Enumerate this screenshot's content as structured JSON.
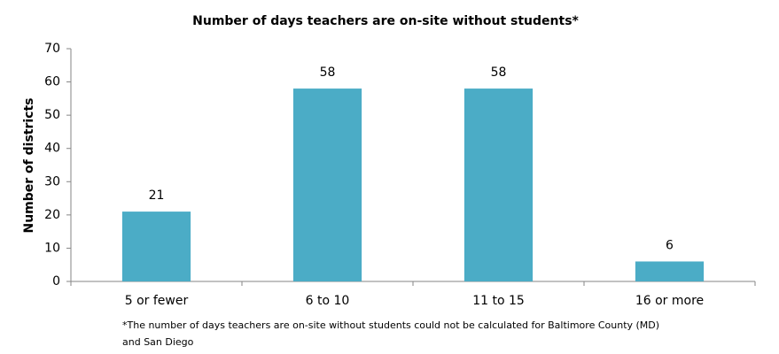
{
  "chart_data": {
    "type": "bar",
    "title": "Number of days teachers are on-site without students*",
    "y_label": "Number of districts",
    "categories": [
      "5 or fewer",
      "6 to 10",
      "11 to 15",
      "16 or more"
    ],
    "values": [
      21,
      58,
      58,
      6
    ],
    "color": "#4bacc6",
    "ylim": [
      0,
      70
    ],
    "yticks": [
      0,
      10,
      20,
      30,
      40,
      50,
      60,
      70
    ],
    "grid": false,
    "footnote": [
      "*The number of days teachers are on-site without students could not be calculated for Baltimore County (MD)",
      "and San Diego"
    ]
  }
}
